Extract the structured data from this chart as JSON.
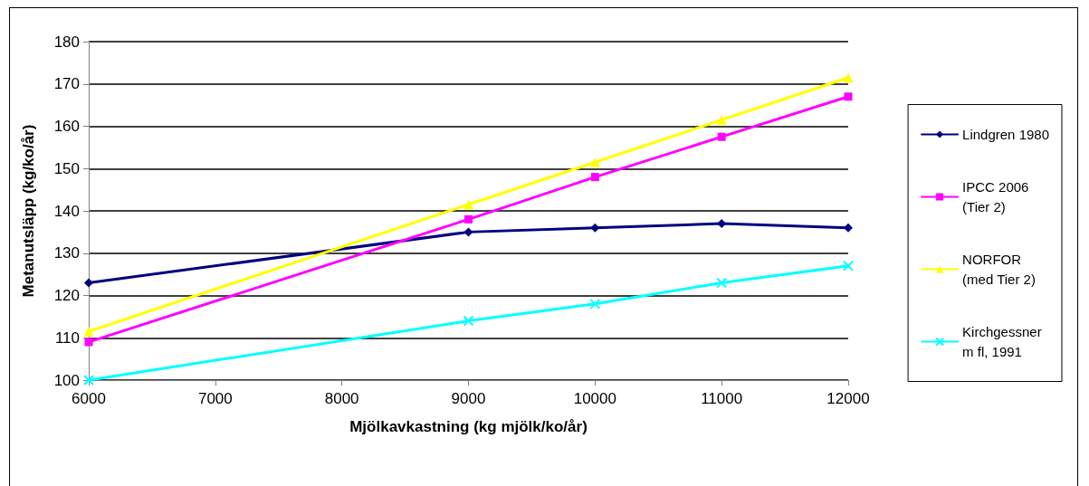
{
  "chart_data": {
    "type": "line",
    "xlabel": "Mjölkavkastning (kg mjölk/ko/år)",
    "ylabel": "Metanutsläpp (kg/ko/år)",
    "x": [
      6000,
      9000,
      10000,
      11000,
      12000
    ],
    "xlim": [
      6000,
      12000
    ],
    "xticks": [
      6000,
      7000,
      8000,
      9000,
      10000,
      11000,
      12000
    ],
    "ylim": [
      100,
      180
    ],
    "yticks": [
      100,
      110,
      120,
      130,
      140,
      150,
      160,
      170,
      180
    ],
    "grid": "y",
    "legend": "right",
    "line_style": "solid",
    "series": [
      {
        "name": "Lindgren 1980",
        "color": "#000080",
        "marker": "diamond",
        "values": [
          123,
          135,
          136,
          137,
          136
        ]
      },
      {
        "name": "IPCC 2006\n(Tier 2)",
        "color": "#ff00ff",
        "marker": "square",
        "values": [
          109,
          138,
          148,
          157.5,
          167
        ]
      },
      {
        "name": "NORFOR\n(med Tier 2)",
        "color": "#ffff00",
        "marker": "triangle",
        "values": [
          111.5,
          141.5,
          151.5,
          161.5,
          171.5
        ]
      },
      {
        "name": "Kirchgessner\nm fl, 1991",
        "color": "#00ffff",
        "marker": "cross",
        "values": [
          100,
          114,
          118,
          123,
          127
        ]
      }
    ]
  }
}
